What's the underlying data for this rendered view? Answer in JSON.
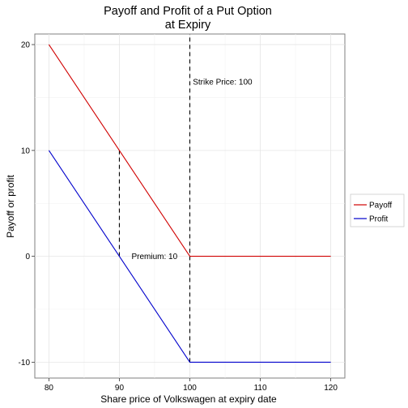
{
  "chart_data": {
    "type": "line",
    "title_lines": [
      "Payoff and Profit of a Put Option",
      "at Expiry"
    ],
    "xlabel": "Share price of Volkswagen at expiry date",
    "ylabel": "Payoff or profit",
    "xlim": [
      78,
      122
    ],
    "ylim": [
      -11.5,
      21
    ],
    "x_ticks": [
      80,
      90,
      100,
      110,
      120
    ],
    "y_ticks": [
      -10,
      0,
      10,
      20
    ],
    "x_tick_labels": [
      "80",
      "90",
      "100",
      "110",
      "120"
    ],
    "y_tick_labels": [
      "-10",
      "0",
      "10",
      "20"
    ],
    "grid": true,
    "legend_position": "right",
    "series": [
      {
        "name": "Payoff",
        "color": "#d00000",
        "x": [
          80,
          100,
          120
        ],
        "y": [
          20,
          0,
          0
        ]
      },
      {
        "name": "Profit",
        "color": "#0000cc",
        "x": [
          80,
          100,
          120
        ],
        "y": [
          10,
          -10,
          -10
        ]
      }
    ],
    "vlines": [
      {
        "x": 100,
        "y_from": -10,
        "y_to": 21,
        "style": "dashed"
      },
      {
        "x": 90,
        "y_from": 0,
        "y_to": 10,
        "style": "dashed"
      }
    ],
    "annotations": [
      {
        "text": "Strike Price: 100",
        "x": 100.2,
        "y": 16.5
      },
      {
        "text": "Premium: 10",
        "x": 91.5,
        "y": 0
      }
    ]
  }
}
